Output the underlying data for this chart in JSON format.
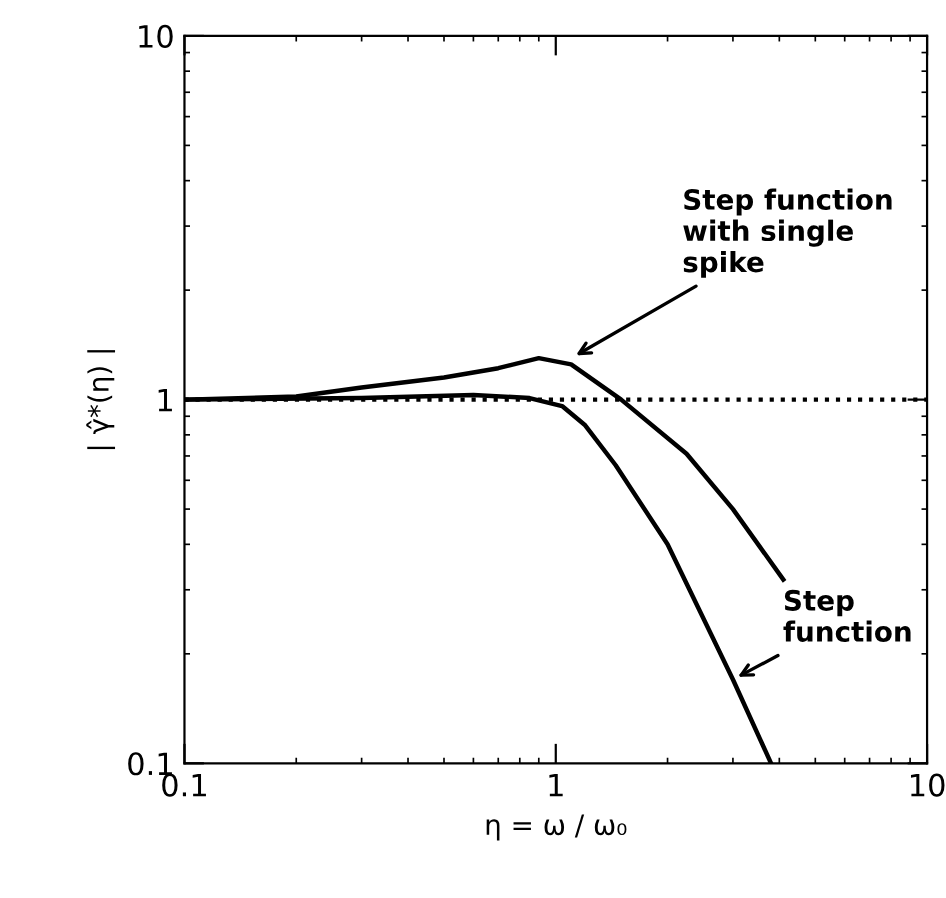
{
  "chart_data": {
    "type": "line",
    "xlabel": "η = ω / ω₀",
    "ylabel": "| γ̂*(η) |",
    "log": "xy",
    "xlim": [
      0.1,
      10
    ],
    "ylim": [
      0.1,
      10
    ],
    "xticks": [
      0.1,
      1,
      10
    ],
    "yticks": [
      0.1,
      1,
      10
    ],
    "grid": false,
    "legend": false,
    "marker": "none",
    "line_style": "solid",
    "series": [
      {
        "color": "#000000",
        "x": [
          0.1,
          0.2,
          0.3,
          0.5,
          0.7,
          0.9,
          1.1,
          1.5,
          2.25,
          3,
          4.1
        ],
        "values": [
          1.0,
          1.02,
          1.08,
          1.15,
          1.22,
          1.3,
          1.25,
          1.0,
          0.71,
          0.5,
          0.32
        ]
      },
      {
        "color": "#000000",
        "x": [
          0.1,
          0.3,
          0.6,
          0.85,
          1.04,
          1.2,
          1.45,
          2.0,
          3.0,
          3.8
        ],
        "values": [
          1.0,
          1.01,
          1.03,
          1.01,
          0.96,
          0.85,
          0.66,
          0.4,
          0.17,
          0.1
        ]
      }
    ],
    "ref_lines": [
      {
        "axis": "y",
        "value": 1,
        "color": "#000000",
        "line_style": "dotted"
      }
    ],
    "annotations": [
      {
        "text": "Step function\nwith single\nspike",
        "x": 1.1,
        "y": 1.3
      },
      {
        "text": "Step\nfunction",
        "x": 3.0,
        "y": 0.17
      }
    ]
  }
}
